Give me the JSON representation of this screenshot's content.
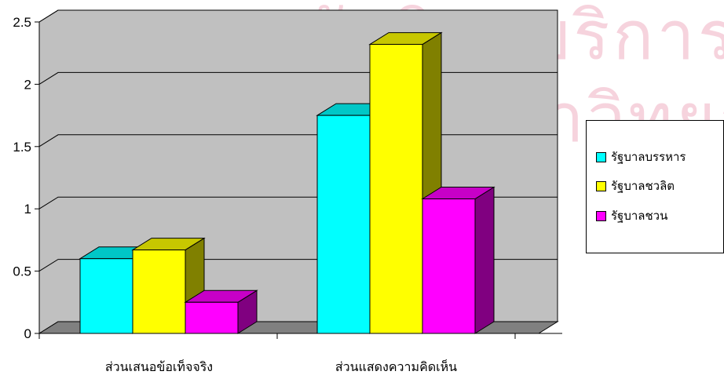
{
  "watermark": {
    "line1": "สถาบันวิทยบริการ",
    "line2": "จุฬาลงกรณ์มหาวิทยาลัย"
  },
  "colors": {
    "wall": "#c0c0c0",
    "floor": "#808080",
    "watermark": "#f6d3dd"
  },
  "chart_data": {
    "type": "bar",
    "style": "3d-clustered-column",
    "categories": [
      "ส่วนเสนอข้อเท็จจริง",
      "ส่วนแสดงความคิดเห็น"
    ],
    "series": [
      {
        "name": "รัฐบาลบรรหาร",
        "values": [
          0.6,
          1.75
        ],
        "color": "#00ffff"
      },
      {
        "name": "รัฐบาลชวลิต",
        "values": [
          0.67,
          2.32
        ],
        "color": "#ffff00"
      },
      {
        "name": "รัฐบาลชวน",
        "values": [
          0.25,
          1.08
        ],
        "color": "#ff00ff"
      }
    ],
    "ylim": [
      0,
      2.5
    ],
    "yticks": [
      "0",
      "0.5",
      "1",
      "1.5",
      "2",
      "2.5"
    ],
    "grid": true,
    "legend": "right",
    "title": "",
    "xlabel": "",
    "ylabel": ""
  }
}
